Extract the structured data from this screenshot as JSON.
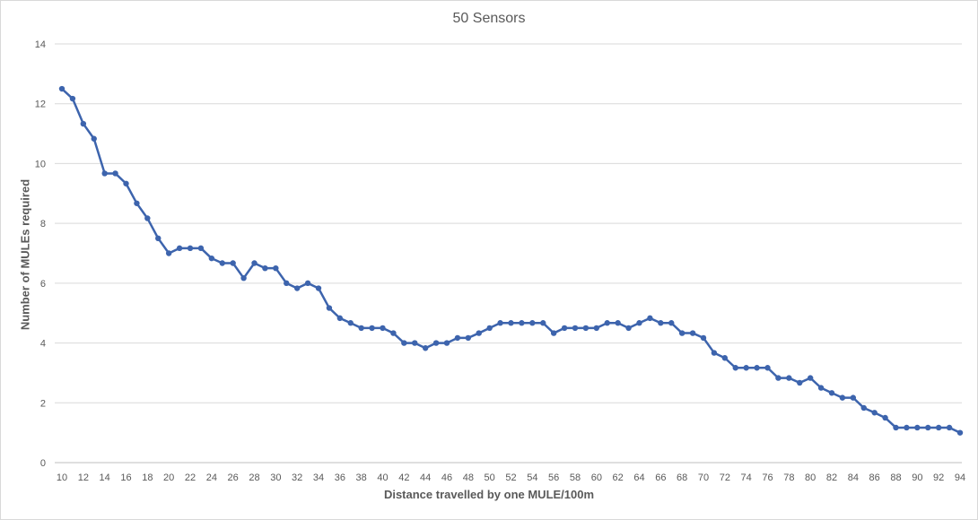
{
  "chart_data": {
    "type": "line",
    "title": "50 Sensors",
    "xlabel": "Distance travelled by one MULE/100m",
    "ylabel": "Number of MULEs required",
    "ylim": [
      0,
      14
    ],
    "yticks": [
      0,
      2,
      4,
      6,
      8,
      10,
      12,
      14
    ],
    "xlim": [
      10,
      94
    ],
    "x_tick_labels": [
      "10",
      "12",
      "14",
      "16",
      "18",
      "20",
      "22",
      "24",
      "26",
      "28",
      "30",
      "32",
      "34",
      "36",
      "38",
      "40",
      "42",
      "44",
      "46",
      "48",
      "50",
      "52",
      "54",
      "56",
      "58",
      "60",
      "62",
      "64",
      "66",
      "68",
      "70",
      "72",
      "74",
      "76",
      "78",
      "80",
      "82",
      "84",
      "86",
      "88",
      "90",
      "92",
      "94"
    ],
    "grid": "horizontal",
    "legend": "none",
    "series": [
      {
        "color": "#3d64ad",
        "x": [
          10,
          11,
          12,
          13,
          14,
          15,
          16,
          17,
          18,
          19,
          20,
          21,
          22,
          23,
          24,
          25,
          26,
          27,
          28,
          29,
          30,
          31,
          32,
          33,
          34,
          35,
          36,
          37,
          38,
          39,
          40,
          41,
          42,
          43,
          44,
          45,
          46,
          47,
          48,
          49,
          50,
          51,
          52,
          53,
          54,
          55,
          56,
          57,
          58,
          59,
          60,
          61,
          62,
          63,
          64,
          65,
          66,
          67,
          68,
          69,
          70,
          71,
          72,
          73,
          74,
          75,
          76,
          77,
          78,
          79,
          80,
          81,
          82,
          83,
          84,
          85,
          86,
          87,
          88,
          89,
          90,
          91,
          92,
          93,
          94
        ],
        "values": [
          12.5,
          12.17,
          11.33,
          10.83,
          9.67,
          9.67,
          9.33,
          8.67,
          8.17,
          7.5,
          7.0,
          7.17,
          7.17,
          7.17,
          6.83,
          6.67,
          6.67,
          6.17,
          6.67,
          6.5,
          6.5,
          6.0,
          5.83,
          6.0,
          5.83,
          5.17,
          4.83,
          4.67,
          4.5,
          4.5,
          4.5,
          4.33,
          4.0,
          4.0,
          3.83,
          4.0,
          4.0,
          4.17,
          4.17,
          4.33,
          4.5,
          4.67,
          4.67,
          4.67,
          4.67,
          4.67,
          4.33,
          4.5,
          4.5,
          4.5,
          4.5,
          4.67,
          4.67,
          4.5,
          4.67,
          4.83,
          4.67,
          4.67,
          4.33,
          4.33,
          4.17,
          3.67,
          3.5,
          3.17,
          3.17,
          3.17,
          3.17,
          2.83,
          2.83,
          2.67,
          2.83,
          2.5,
          2.33,
          2.17,
          2.17,
          1.83,
          1.67,
          1.5,
          1.17,
          1.17,
          1.17,
          1.17,
          1.17,
          1.17,
          1.0
        ]
      }
    ]
  }
}
